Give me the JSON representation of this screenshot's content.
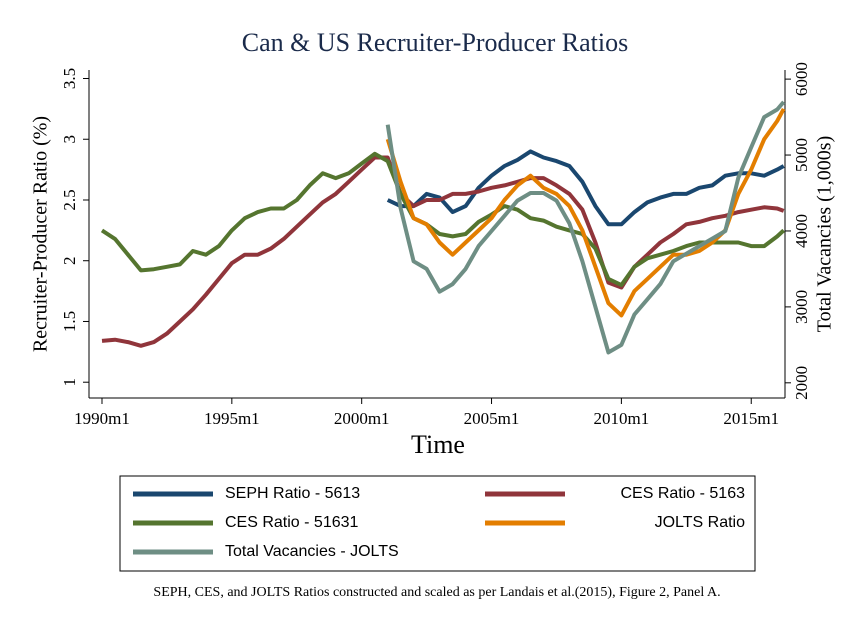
{
  "chart_data": {
    "type": "line",
    "title": "Can & US Recruiter-Producer Ratios",
    "xlabel": "Time",
    "ylabel": "Recruiter-Producer Ratio (%)",
    "y2label": "Total Vacancies (1,000s)",
    "note": "SEPH, CES, and JOLTS Ratios constructed and scaled as per Landais et al.(2015), Figure 2, Panel A.",
    "x": [
      1990,
      1990.5,
      1991,
      1991.5,
      1992,
      1992.5,
      1993,
      1993.5,
      1994,
      1994.5,
      1995,
      1995.5,
      1996,
      1996.5,
      1997,
      1997.5,
      1998,
      1998.5,
      1999,
      1999.5,
      2000,
      2000.5,
      2001,
      2001.5,
      2002,
      2002.5,
      2003,
      2003.5,
      2004,
      2004.5,
      2005,
      2005.5,
      2006,
      2006.5,
      2007,
      2007.5,
      2008,
      2008.5,
      2009,
      2009.5,
      2010,
      2010.5,
      2011,
      2011.5,
      2012,
      2012.5,
      2013,
      2013.5,
      2014,
      2014.5,
      2015,
      2015.5,
      2016,
      2016.25
    ],
    "xlim": [
      1989.5,
      2016.3
    ],
    "xticks": [
      {
        "value": 1990,
        "label": "1990m1"
      },
      {
        "value": 1995,
        "label": "1995m1"
      },
      {
        "value": 2000,
        "label": "2000m1"
      },
      {
        "value": 2005,
        "label": "2005m1"
      },
      {
        "value": 2010,
        "label": "2010m1"
      },
      {
        "value": 2015,
        "label": "2015m1"
      }
    ],
    "ylim": [
      0.87,
      3.57
    ],
    "yticks": [
      1,
      1.5,
      2,
      2.5,
      3,
      3.5
    ],
    "y2lim": [
      1800,
      6120
    ],
    "y2ticks": [
      2000,
      3000,
      4000,
      5000,
      6000
    ],
    "grid": false,
    "legend_position": "bottom",
    "series": [
      {
        "name": "SEPH Ratio - 5613",
        "color": "#1a476f",
        "values": [
          null,
          null,
          null,
          null,
          null,
          null,
          null,
          null,
          null,
          null,
          null,
          null,
          null,
          null,
          null,
          null,
          null,
          null,
          null,
          null,
          null,
          null,
          2.5,
          2.45,
          2.45,
          2.55,
          2.52,
          2.4,
          2.45,
          2.6,
          2.7,
          2.78,
          2.83,
          2.9,
          2.85,
          2.82,
          2.78,
          2.65,
          2.45,
          2.3,
          2.3,
          2.4,
          2.48,
          2.52,
          2.55,
          2.55,
          2.6,
          2.62,
          2.7,
          2.72,
          2.72,
          2.7,
          2.75,
          2.78
        ]
      },
      {
        "name": "CES Ratio - 5163",
        "color": "#90353b",
        "values": [
          1.34,
          1.35,
          1.33,
          1.3,
          1.33,
          1.4,
          1.5,
          1.6,
          1.72,
          1.85,
          1.98,
          2.05,
          2.05,
          2.1,
          2.18,
          2.28,
          2.38,
          2.48,
          2.55,
          2.65,
          2.75,
          2.85,
          2.85,
          2.55,
          2.45,
          2.5,
          2.5,
          2.55,
          2.55,
          2.57,
          2.6,
          2.62,
          2.65,
          2.68,
          2.68,
          2.62,
          2.55,
          2.42,
          2.15,
          1.82,
          1.78,
          1.95,
          2.05,
          2.15,
          2.22,
          2.3,
          2.32,
          2.35,
          2.37,
          2.4,
          2.42,
          2.44,
          2.43,
          2.41
        ]
      },
      {
        "name": "CES Ratio - 51631",
        "color": "#55752f",
        "values": [
          2.25,
          2.18,
          2.05,
          1.92,
          1.93,
          1.95,
          1.97,
          2.08,
          2.05,
          2.12,
          2.25,
          2.35,
          2.4,
          2.43,
          2.43,
          2.5,
          2.62,
          2.72,
          2.68,
          2.72,
          2.8,
          2.88,
          2.82,
          2.55,
          2.35,
          2.3,
          2.22,
          2.2,
          2.22,
          2.32,
          2.38,
          2.45,
          2.42,
          2.35,
          2.33,
          2.28,
          2.25,
          2.22,
          2.1,
          1.85,
          1.8,
          1.95,
          2.02,
          2.05,
          2.08,
          2.12,
          2.15,
          2.15,
          2.15,
          2.15,
          2.12,
          2.12,
          2.2,
          2.25
        ]
      },
      {
        "name": "JOLTS Ratio",
        "color": "#e37e00",
        "values": [
          null,
          null,
          null,
          null,
          null,
          null,
          null,
          null,
          null,
          null,
          null,
          null,
          null,
          null,
          null,
          null,
          null,
          null,
          null,
          null,
          null,
          null,
          3.0,
          2.65,
          2.35,
          2.3,
          2.15,
          2.05,
          2.15,
          2.25,
          2.35,
          2.5,
          2.62,
          2.7,
          2.6,
          2.55,
          2.45,
          2.25,
          1.95,
          1.65,
          1.55,
          1.75,
          1.85,
          1.95,
          2.05,
          2.05,
          2.08,
          2.15,
          2.25,
          2.55,
          2.75,
          3.0,
          3.15,
          3.25
        ]
      },
      {
        "name": "Total Vacancies - JOLTS",
        "color": "#6e8e84",
        "axis": "y2",
        "values": [
          null,
          null,
          null,
          null,
          null,
          null,
          null,
          null,
          null,
          null,
          null,
          null,
          null,
          null,
          null,
          null,
          null,
          null,
          null,
          null,
          null,
          null,
          5400,
          4300,
          3600,
          3500,
          3200,
          3300,
          3500,
          3800,
          4000,
          4200,
          4400,
          4500,
          4500,
          4400,
          4100,
          3600,
          3000,
          2400,
          2500,
          2900,
          3100,
          3300,
          3600,
          3700,
          3800,
          3900,
          4000,
          4700,
          5100,
          5500,
          5600,
          5700
        ]
      }
    ]
  }
}
